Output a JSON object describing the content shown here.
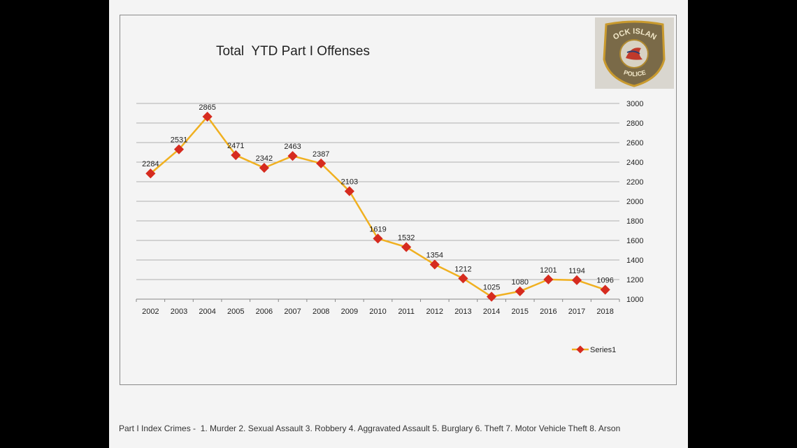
{
  "chart_data": {
    "type": "line",
    "title": "Total  YTD Part I Offenses",
    "categories": [
      "2002",
      "2003",
      "2004",
      "2005",
      "2006",
      "2007",
      "2008",
      "2009",
      "2010",
      "2011",
      "2012",
      "2013",
      "2014",
      "2015",
      "2016",
      "2017",
      "2018"
    ],
    "series": [
      {
        "name": "Series1",
        "values": [
          2284,
          2531,
          2865,
          2471,
          2342,
          2463,
          2387,
          2103,
          1619,
          1532,
          1354,
          1212,
          1025,
          1080,
          1201,
          1194,
          1096
        ]
      }
    ],
    "ylim": [
      1000,
      3000
    ],
    "yticks": [
      1000,
      1200,
      1400,
      1600,
      1800,
      2000,
      2200,
      2400,
      2600,
      2800,
      3000
    ],
    "yaxis_side": "right",
    "grid": true,
    "legend": "bottom-right",
    "line_color": "#f0b020",
    "marker_color": "#d62b1f",
    "xlabel": "",
    "ylabel": ""
  },
  "footer": "Part I Index Crimes -  1. Murder 2. Sexual Assault 3. Robbery 4. Aggravated Assault 5. Burglary 6. Theft 7. Motor Vehicle Theft 8. Arson",
  "logo": {
    "top_text": "ROCK ISLAND",
    "bottom_text": "POLICE"
  }
}
